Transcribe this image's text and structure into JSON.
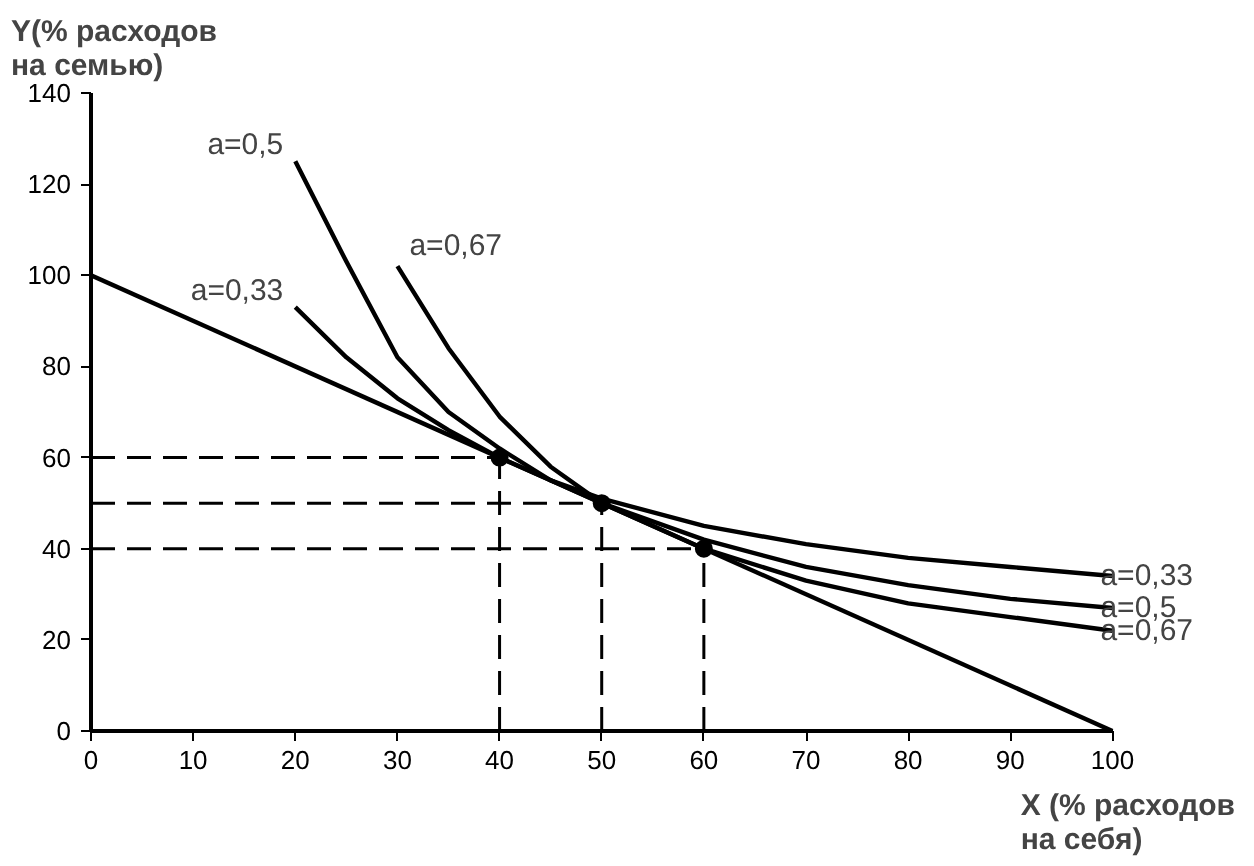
{
  "chart_data": {
    "type": "line",
    "xlabel": "X (% расходов\nна себя)",
    "ylabel": "Y(% расходов\nна семью)",
    "xlim": [
      0,
      100
    ],
    "ylim": [
      0,
      140
    ],
    "xticks": [
      0,
      10,
      20,
      30,
      40,
      50,
      60,
      70,
      80,
      90,
      100
    ],
    "yticks": [
      0,
      20,
      40,
      60,
      80,
      100,
      120,
      140
    ],
    "grid": false,
    "line_style": "solid",
    "marker": "none",
    "series": [
      {
        "color": "#000000",
        "x": [
          0,
          100
        ],
        "values": [
          100,
          0
        ]
      },
      {
        "color": "#000000",
        "x": [
          20,
          25,
          30,
          35,
          40,
          45,
          50,
          60,
          70,
          80,
          90,
          100
        ],
        "values": [
          125,
          103,
          82,
          70,
          62,
          55,
          50,
          42,
          36,
          32,
          29,
          27
        ]
      },
      {
        "color": "#000000",
        "x": [
          20,
          25,
          30,
          35,
          40,
          45,
          50,
          60,
          70,
          80,
          90,
          100
        ],
        "values": [
          93,
          82,
          73,
          66,
          60,
          55,
          51,
          45,
          41,
          38,
          36,
          34
        ]
      },
      {
        "color": "#000000",
        "x": [
          30,
          35,
          40,
          45,
          50,
          60,
          70,
          80,
          90,
          100
        ],
        "values": [
          102,
          84,
          69,
          58,
          50,
          40,
          33,
          28,
          25,
          22
        ]
      },
      {
        "color": "#000000",
        "type": "line",
        "line_style": "dashed",
        "x": [
          0,
          40
        ],
        "values": [
          60,
          60
        ]
      },
      {
        "color": "#000000",
        "type": "line",
        "line_style": "dashed",
        "x": [
          0,
          50
        ],
        "values": [
          50,
          50
        ]
      },
      {
        "color": "#000000",
        "type": "line",
        "line_style": "dashed",
        "x": [
          0,
          60
        ],
        "values": [
          40,
          40
        ]
      },
      {
        "color": "#000000",
        "type": "line",
        "line_style": "dashed",
        "x": [
          40,
          40
        ],
        "values": [
          0,
          60
        ]
      },
      {
        "color": "#000000",
        "type": "line",
        "line_style": "dashed",
        "x": [
          50,
          50
        ],
        "values": [
          0,
          50
        ]
      },
      {
        "color": "#000000",
        "type": "line",
        "line_style": "dashed",
        "x": [
          60,
          60
        ],
        "values": [
          0,
          40
        ]
      },
      {
        "color": "#000000",
        "type": "scatter",
        "marker": "circle",
        "x": [
          40,
          50,
          60
        ],
        "values": [
          60,
          50,
          40
        ]
      }
    ],
    "annotations": [
      {
        "text": "a=0,5",
        "x": 20,
        "y": 125
      },
      {
        "text": "a=0,33",
        "x": 20,
        "y": 93
      },
      {
        "text": "a=0,67",
        "x": 30,
        "y": 102
      },
      {
        "text": "a=0,33",
        "x": 100,
        "y": 34
      },
      {
        "text": "a=0,5",
        "x": 100,
        "y": 27
      },
      {
        "text": "a=0,67",
        "x": 100,
        "y": 22
      }
    ]
  }
}
